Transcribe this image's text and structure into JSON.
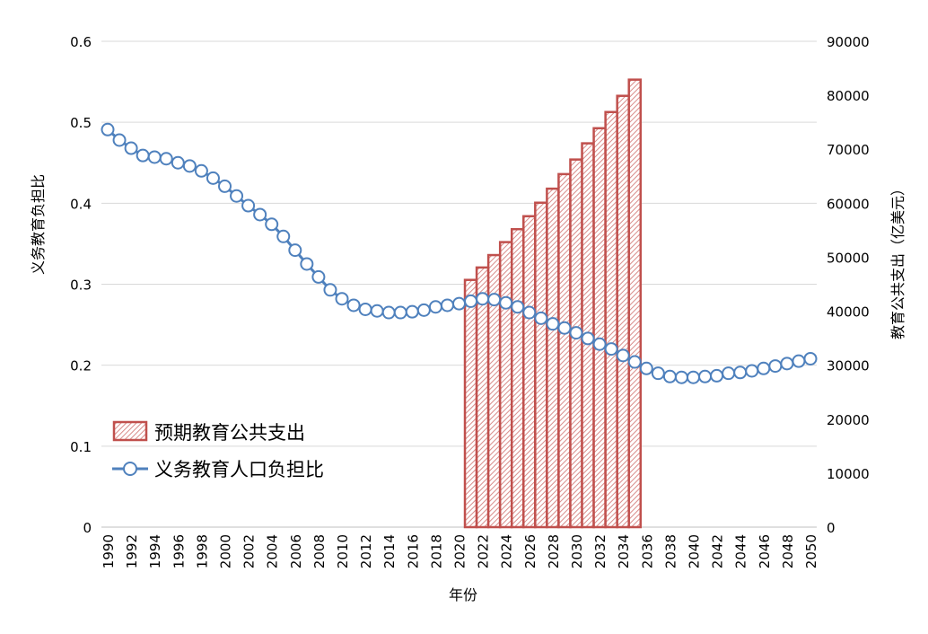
{
  "chart_data": {
    "type": "bar+line",
    "xlabel": "年份",
    "ylabel_left": "义务教育负担比",
    "ylabel_right": "教育公共支出（亿美元）",
    "ylim_left": [
      0,
      0.6
    ],
    "yticks_left": [
      "0",
      "0.1",
      "0.2",
      "0.3",
      "0.4",
      "0.5",
      "0.6"
    ],
    "ylim_right": [
      0,
      90000
    ],
    "yticks_right": [
      "0",
      "10000",
      "20000",
      "30000",
      "40000",
      "50000",
      "60000",
      "70000",
      "80000",
      "90000"
    ],
    "xlim": [
      1990,
      2050
    ],
    "xticks": [
      "1990",
      "1992",
      "1994",
      "1996",
      "1998",
      "2000",
      "2002",
      "2004",
      "2006",
      "2008",
      "2010",
      "2012",
      "2014",
      "2016",
      "2018",
      "2020",
      "2022",
      "2024",
      "2026",
      "2028",
      "2030",
      "2032",
      "2034",
      "2036",
      "2038",
      "2040",
      "2042",
      "2044",
      "2046",
      "2048",
      "2050"
    ],
    "grid": true,
    "legend_position": "center-left",
    "colors": {
      "bar": "#c0504d",
      "line": "#4f81bd",
      "grid": "#d9d9d9"
    },
    "series": [
      {
        "name": "预期教育公共支出",
        "type": "bar",
        "axis": "right",
        "x": [
          2021,
          2022,
          2023,
          2024,
          2025,
          2026,
          2027,
          2028,
          2029,
          2030,
          2031,
          2032,
          2033,
          2034,
          2035
        ],
        "values": [
          45800,
          48100,
          50400,
          52800,
          55200,
          57600,
          60100,
          62700,
          65400,
          68100,
          71100,
          73900,
          76900,
          79900,
          82900
        ]
      },
      {
        "name": "义务教育人口负担比",
        "type": "line",
        "axis": "left",
        "x": [
          1990,
          1991,
          1992,
          1993,
          1994,
          1995,
          1996,
          1997,
          1998,
          1999,
          2000,
          2001,
          2002,
          2003,
          2004,
          2005,
          2006,
          2007,
          2008,
          2009,
          2010,
          2011,
          2012,
          2013,
          2014,
          2015,
          2016,
          2017,
          2018,
          2019,
          2020,
          2021,
          2022,
          2023,
          2024,
          2025,
          2026,
          2027,
          2028,
          2029,
          2030,
          2031,
          2032,
          2033,
          2034,
          2035,
          2036,
          2037,
          2038,
          2039,
          2040,
          2041,
          2042,
          2043,
          2044,
          2045,
          2046,
          2047,
          2048,
          2049,
          2050
        ],
        "values": [
          0.491,
          0.478,
          0.468,
          0.459,
          0.457,
          0.455,
          0.45,
          0.446,
          0.44,
          0.431,
          0.421,
          0.409,
          0.397,
          0.386,
          0.374,
          0.359,
          0.342,
          0.325,
          0.309,
          0.293,
          0.282,
          0.274,
          0.269,
          0.267,
          0.265,
          0.265,
          0.266,
          0.268,
          0.272,
          0.274,
          0.276,
          0.279,
          0.282,
          0.281,
          0.277,
          0.272,
          0.265,
          0.258,
          0.251,
          0.246,
          0.24,
          0.233,
          0.226,
          0.22,
          0.212,
          0.204,
          0.196,
          0.19,
          0.186,
          0.185,
          0.185,
          0.186,
          0.187,
          0.19,
          0.191,
          0.193,
          0.196,
          0.199,
          0.202,
          0.205,
          0.208
        ]
      }
    ]
  }
}
